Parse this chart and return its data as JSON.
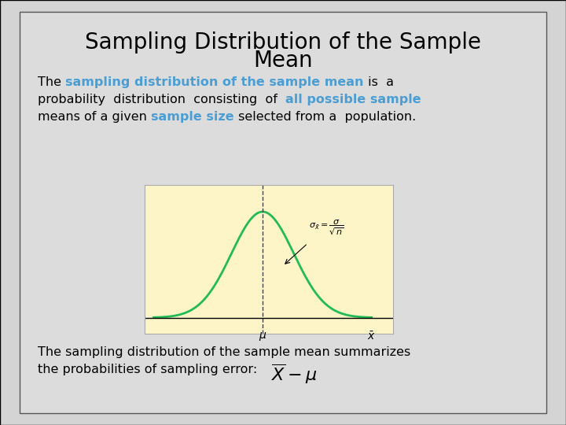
{
  "title": "Sampling Distribution of the Sample\nMean",
  "title_fontsize": 20,
  "title_color": "#000000",
  "body_text_color": "#000000",
  "highlight_color": "#4a9ed4",
  "paragraph2_line1": "The sampling distribution of the sample mean summarizes",
  "paragraph2_line2": "the probabilities of sampling error: ",
  "curve_color": "#22bb55",
  "inset_bg": "#fdf5c8",
  "font_size_body": 11.5,
  "slide_bg": "#d4d4d4",
  "content_bg": "#e2e2e2"
}
